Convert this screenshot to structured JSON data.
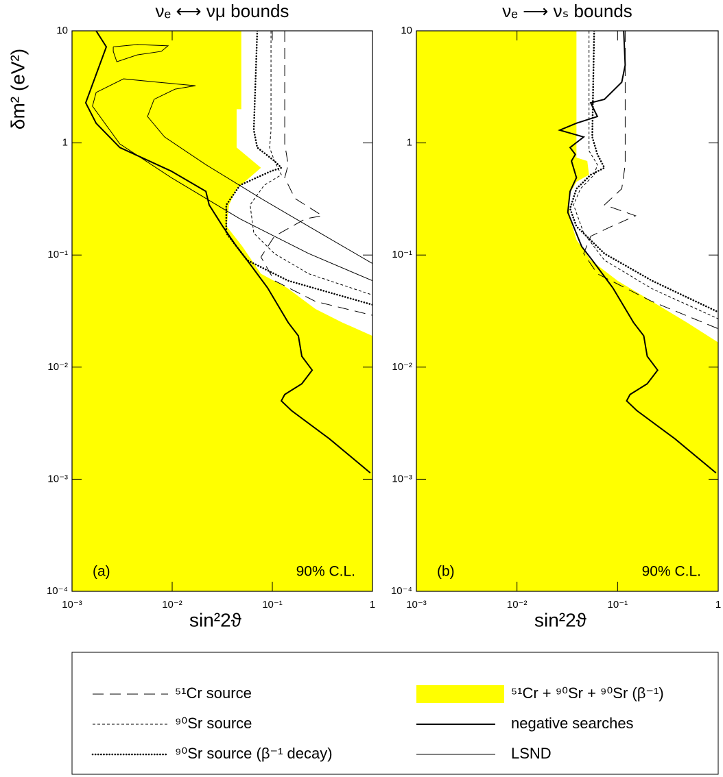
{
  "legend": [
    {
      "name": "⁵¹Cr source",
      "style": "dashed",
      "color": "#000000"
    },
    {
      "name": "⁹⁰Sr source",
      "style": "short-dashed",
      "color": "#000000"
    },
    {
      "name": "⁹⁰Sr source (β⁻¹ decay)",
      "style": "dotted",
      "color": "#000000"
    },
    {
      "name": "⁵¹Cr + ⁹⁰Sr + ⁹⁰Sr (β⁻¹)",
      "style": "fill",
      "color": "#ffff00"
    },
    {
      "name": "negative searches",
      "style": "thick",
      "color": "#000000"
    },
    {
      "name": "LSND",
      "style": "thin",
      "color": "#000000"
    }
  ],
  "chart_data": [
    {
      "type": "line",
      "title": "νₑ ⟷ νμ bounds",
      "xlabel": "sin²2ϑ",
      "ylabel": "δm² (eV²)",
      "annotations": [
        "(a)",
        "90% C.L."
      ],
      "xlog": true,
      "ylog": true,
      "xlim": [
        0.001,
        1
      ],
      "ylim": [
        0.0001,
        10
      ],
      "xticks": [
        {
          "value": 0.001,
          "label": "10⁻³"
        },
        {
          "value": 0.01,
          "label": "10⁻²"
        },
        {
          "value": 0.1,
          "label": "10⁻¹"
        },
        1
      ],
      "yticks": [
        {
          "value": 0.0001,
          "label": "10⁻⁴"
        },
        {
          "value": 0.001,
          "label": "10⁻³"
        },
        {
          "value": 0.01,
          "label": "10⁻²"
        },
        {
          "value": 0.1,
          "label": "10⁻¹"
        },
        1,
        10
      ],
      "series": [
        {
          "style": "fill",
          "color": "#ffff00",
          "x": [
            0.049,
            0.049,
            0.044,
            0.044,
            0.077,
            0.044,
            0.037,
            0.035,
            0.05,
            0.077,
            0.14,
            0.27,
            0.5,
            1
          ],
          "values": [
            10,
            2.0,
            2.0,
            0.91,
            0.6,
            0.39,
            0.28,
            0.18,
            0.12,
            0.068,
            0.051,
            0.033,
            0.025,
            0.019
          ]
        },
        {
          "style": "dashed",
          "color": "#000000",
          "x": [
            0.133,
            0.133,
            0.144,
            0.133,
            0.168,
            0.316,
            0.213,
            0.105,
            0.077,
            0.105,
            0.27,
            1
          ],
          "values": [
            10,
            0.98,
            0.64,
            0.49,
            0.32,
            0.224,
            0.21,
            0.147,
            0.096,
            0.059,
            0.0385,
            0.029
          ]
        },
        {
          "style": "short-dashed",
          "color": "#000000",
          "x": [
            0.097,
            0.097,
            0.094,
            0.105,
            0.123,
            0.083,
            0.06,
            0.0653,
            0.105,
            0.231,
            1
          ],
          "values": [
            10,
            1.3,
            0.91,
            0.69,
            0.52,
            0.42,
            0.28,
            0.157,
            0.103,
            0.068,
            0.044
          ]
        },
        {
          "style": "dotted",
          "color": "#000000",
          "x": [
            0.0707,
            0.0653,
            0.0707,
            0.105,
            0.123,
            0.097,
            0.0476,
            0.0347,
            0.0347,
            0.056,
            0.144,
            1
          ],
          "values": [
            10,
            1.3,
            0.91,
            0.69,
            0.6,
            0.56,
            0.42,
            0.28,
            0.157,
            0.09,
            0.059,
            0.036
          ]
        },
        {
          "style": "thick",
          "color": "#000000",
          "x": [
            0.00174,
            0.0022,
            0.00137,
            0.00174,
            0.003,
            0.0098,
            0.0217,
            0.0234,
            0.032,
            0.044,
            0.056,
            0.0896,
            0.144,
            0.182,
            0.197,
            0.25,
            0.197,
            0.133,
            0.123,
            0.155,
            0.37,
            0.95
          ],
          "values": [
            10,
            7.2,
            2.28,
            1.5,
            0.91,
            0.56,
            0.37,
            0.28,
            0.18,
            0.119,
            0.09,
            0.051,
            0.025,
            0.019,
            0.0125,
            0.0094,
            0.0071,
            0.0057,
            0.005,
            0.0041,
            0.0023,
            0.00114
          ]
        },
        {
          "style": "thin",
          "color": "#000000",
          "x": [
            0.00258,
            0.00448,
            0.0091,
            0.0078,
            0.00448,
            0.0028,
            0.00258,
            0.00258,
            null,
            1,
            0.231,
            0.0476,
            0.0098,
            0.003,
            0.0016,
            0.00174,
            0.00327,
            0.0072,
            0.0171,
            0.0107,
            0.0066,
            0.00567,
            0.0084,
            0.0217,
            0.077,
            0.231,
            1
          ],
          "values": [
            7.2,
            7.55,
            7.35,
            6.56,
            6.1,
            5.3,
            6.56,
            7.2,
            null,
            0.059,
            0.103,
            0.21,
            0.49,
            0.98,
            2.13,
            2.82,
            3.73,
            3.48,
            3.24,
            3.02,
            2.45,
            1.72,
            1.13,
            0.64,
            0.32,
            0.18,
            0.084
          ]
        }
      ]
    },
    {
      "type": "line",
      "title": "νₑ ⟶ νₛ bounds",
      "xlabel": "sin²2ϑ",
      "annotations": [
        "(b)",
        "90% C.L."
      ],
      "xlog": true,
      "ylog": true,
      "xlim": [
        0.001,
        1
      ],
      "ylim": [
        0.0001,
        10
      ],
      "xticks": [
        {
          "value": 0.001,
          "label": "10⁻³"
        },
        {
          "value": 0.01,
          "label": "10⁻²"
        },
        {
          "value": 0.1,
          "label": "10⁻¹"
        },
        1
      ],
      "yticks": [
        {
          "value": 0.0001,
          "label": "10⁻⁴"
        },
        {
          "value": 0.001,
          "label": "10⁻³"
        },
        {
          "value": 0.01,
          "label": "10⁻²"
        },
        {
          "value": 0.1,
          "label": "10⁻¹"
        },
        1,
        10
      ],
      "series": [
        {
          "style": "fill",
          "color": "#ffff00",
          "x": [
            0.039,
            0.039,
            0.05,
            0.052,
            0.039,
            0.0327,
            0.0337,
            0.039,
            0.054,
            0.1,
            0.22,
            0.49,
            1
          ],
          "values": [
            10,
            0.74,
            0.69,
            0.52,
            0.45,
            0.34,
            0.21,
            0.137,
            0.09,
            0.059,
            0.0385,
            0.025,
            0.0166
          ]
        },
        {
          "style": "dashed",
          "color": "#000000",
          "x": [
            0.119,
            0.119,
            0.11,
            0.074,
            0.151,
            0.087,
            0.054,
            0.046,
            0.063,
            0.22,
            1
          ],
          "values": [
            10,
            0.64,
            0.39,
            0.28,
            0.224,
            0.18,
            0.147,
            0.103,
            0.068,
            0.0385,
            0.022
          ]
        },
        {
          "style": "short-dashed",
          "color": "#000000",
          "x": [
            0.052,
            0.052,
            0.063,
            0.0585,
            0.0427,
            0.0365,
            0.046,
            0.074,
            0.22,
            1
          ],
          "values": [
            10,
            0.85,
            0.64,
            0.52,
            0.39,
            0.28,
            0.157,
            0.09,
            0.05,
            0.027
          ]
        },
        {
          "style": "dotted",
          "color": "#000000",
          "x": [
            0.0585,
            0.056,
            0.063,
            0.074,
            0.054,
            0.039,
            0.0337,
            0.039,
            0.074,
            0.22,
            1
          ],
          "values": [
            10,
            1.13,
            0.79,
            0.6,
            0.52,
            0.39,
            0.26,
            0.18,
            0.103,
            0.059,
            0.031
          ]
        },
        {
          "style": "thick",
          "color": "#000000",
          "x": [
            0.115,
            0.119,
            0.11,
            0.074,
            0.054,
            0.063,
            0.039,
            0.0266,
            0.046,
            0.0337,
            0.038,
            0.0348,
            0.039,
            0.0337,
            0.032,
            0.044,
            0.056,
            0.0896,
            0.144,
            0.182,
            0.197,
            0.25,
            0.197,
            0.133,
            0.123,
            0.155,
            0.37,
            0.95
          ],
          "values": [
            10,
            4.94,
            3.48,
            2.45,
            2.28,
            1.72,
            1.5,
            1.3,
            1.13,
            0.91,
            0.79,
            0.69,
            0.49,
            0.37,
            0.24,
            0.119,
            0.09,
            0.051,
            0.025,
            0.019,
            0.0125,
            0.0094,
            0.0071,
            0.0057,
            0.005,
            0.0041,
            0.0023,
            0.00114
          ]
        }
      ]
    }
  ]
}
